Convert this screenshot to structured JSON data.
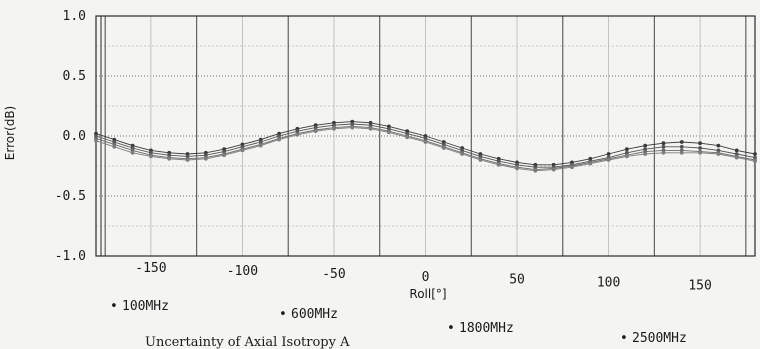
{
  "chart_data": {
    "type": "line",
    "title": "",
    "caption": "Uncertainty of Axial Isotropy A",
    "xlabel": "Roll[°]",
    "ylabel": "Error(dB)",
    "xlim": [
      -180,
      180
    ],
    "ylim": [
      -1.0,
      1.0
    ],
    "x_ticks": [
      -150,
      -100,
      -50,
      0,
      50,
      100,
      150
    ],
    "y_ticks": [
      1.0,
      0.5,
      0.0,
      -0.5,
      -1.0
    ],
    "y_tick_labels": [
      "1.0",
      "0.5",
      "0.0",
      "-0.5",
      "-1.0"
    ],
    "grid": true,
    "legend_position": "bottom",
    "x": [
      -180,
      -170,
      -160,
      -150,
      -140,
      -130,
      -120,
      -110,
      -100,
      -90,
      -80,
      -70,
      -60,
      -50,
      -40,
      -30,
      -20,
      -10,
      0,
      10,
      20,
      30,
      40,
      50,
      60,
      70,
      80,
      90,
      100,
      110,
      120,
      130,
      140,
      150,
      160,
      170,
      180
    ],
    "series": [
      {
        "name": "100MHz",
        "values": [
          0.02,
          -0.03,
          -0.08,
          -0.12,
          -0.14,
          -0.15,
          -0.14,
          -0.11,
          -0.07,
          -0.03,
          0.02,
          0.06,
          0.09,
          0.11,
          0.12,
          0.11,
          0.08,
          0.04,
          0.0,
          -0.05,
          -0.1,
          -0.15,
          -0.19,
          -0.22,
          -0.24,
          -0.24,
          -0.22,
          -0.19,
          -0.15,
          -0.11,
          -0.08,
          -0.06,
          -0.05,
          -0.06,
          -0.08,
          -0.12,
          -0.15
        ]
      },
      {
        "name": "600MHz",
        "values": [
          0.0,
          -0.05,
          -0.1,
          -0.14,
          -0.16,
          -0.17,
          -0.16,
          -0.13,
          -0.09,
          -0.05,
          0.0,
          0.04,
          0.07,
          0.09,
          0.1,
          0.09,
          0.06,
          0.02,
          -0.02,
          -0.07,
          -0.12,
          -0.17,
          -0.21,
          -0.24,
          -0.26,
          -0.26,
          -0.24,
          -0.21,
          -0.18,
          -0.14,
          -0.11,
          -0.09,
          -0.09,
          -0.1,
          -0.12,
          -0.15,
          -0.18
        ]
      },
      {
        "name": "1800MHz",
        "values": [
          -0.02,
          -0.07,
          -0.12,
          -0.16,
          -0.18,
          -0.19,
          -0.18,
          -0.15,
          -0.11,
          -0.07,
          -0.02,
          0.02,
          0.05,
          0.07,
          0.08,
          0.07,
          0.04,
          0.0,
          -0.04,
          -0.09,
          -0.14,
          -0.19,
          -0.23,
          -0.26,
          -0.28,
          -0.27,
          -0.25,
          -0.22,
          -0.19,
          -0.16,
          -0.13,
          -0.12,
          -0.12,
          -0.13,
          -0.14,
          -0.17,
          -0.2
        ]
      },
      {
        "name": "2500MHz",
        "values": [
          -0.04,
          -0.09,
          -0.14,
          -0.17,
          -0.19,
          -0.2,
          -0.19,
          -0.16,
          -0.12,
          -0.08,
          -0.03,
          0.01,
          0.04,
          0.06,
          0.07,
          0.06,
          0.03,
          -0.01,
          -0.05,
          -0.1,
          -0.15,
          -0.2,
          -0.24,
          -0.27,
          -0.29,
          -0.28,
          -0.26,
          -0.23,
          -0.2,
          -0.17,
          -0.15,
          -0.14,
          -0.14,
          -0.14,
          -0.15,
          -0.18,
          -0.21
        ]
      }
    ],
    "colors": {
      "background": "#f4f4f2",
      "frame": "#2a2a2a",
      "grid_major": "#444444",
      "grid_minor": "#b8b8b8",
      "series": [
        "#3a3a3a",
        "#555555",
        "#6a6a6a",
        "#7e7e7e"
      ]
    }
  }
}
